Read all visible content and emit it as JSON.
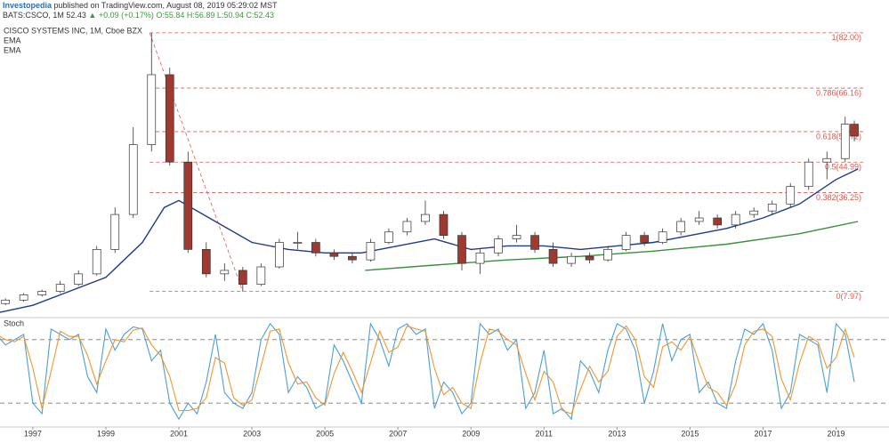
{
  "header": {
    "publisher": "Investopedia",
    "published": "published on TradingView.com, August 08, 2019 05:29:02 MST",
    "symbol": "BATS:CSCO, 1M",
    "last": "52.43",
    "change": "▲ +0.09 (+0.17%)",
    "ohlc": "O:55.84 H:56.89 L:50.94 C:52.43"
  },
  "chart_data": [
    {
      "type": "candlestick",
      "title": "CISCO SYSTEMS INC, 1M, Cboe BZX",
      "up_color": "#ffffff",
      "down_color": "#9e3a2f",
      "wick_color": "#333333",
      "x": [
        1996.25,
        1996.75,
        1997.25,
        1997.75,
        1998.25,
        1998.75,
        1999.25,
        1999.75,
        2000.25,
        2000.75,
        2001.25,
        2001.75,
        2002.25,
        2002.75,
        2003.25,
        2003.75,
        2004.25,
        2004.75,
        2005.25,
        2005.75,
        2006.25,
        2006.75,
        2007.25,
        2007.75,
        2008.25,
        2008.75,
        2009.25,
        2009.75,
        2010.25,
        2010.75,
        2011.25,
        2011.75,
        2012.25,
        2012.75,
        2013.25,
        2013.75,
        2014.25,
        2014.75,
        2015.25,
        2015.75,
        2016.25,
        2016.75,
        2017.25,
        2017.75,
        2018.25,
        2018.75,
        2019.25,
        2019.5
      ],
      "open": [
        4.5,
        5.5,
        7,
        8,
        10,
        13,
        20,
        30,
        50,
        70,
        45,
        20,
        13,
        14,
        10,
        15,
        22,
        22,
        19,
        18,
        17,
        22,
        25,
        28,
        30,
        24,
        16,
        19,
        23,
        24,
        20,
        16,
        18,
        17,
        20,
        24,
        22,
        25,
        28,
        29,
        27,
        30,
        31,
        33,
        38,
        45,
        46,
        55.84
      ],
      "high": [
        6,
        7.5,
        8.5,
        11,
        14,
        21,
        32,
        55,
        82,
        72,
        48,
        22,
        16,
        15,
        16,
        23,
        25,
        23,
        20,
        19,
        23,
        26,
        29,
        34,
        31,
        25,
        20,
        24,
        27,
        25,
        22,
        19,
        19,
        21,
        25,
        25,
        26,
        29,
        31,
        30,
        31,
        32,
        34,
        39,
        46,
        48,
        58,
        56.89
      ],
      "low": [
        4,
        5,
        6.5,
        7.5,
        9.5,
        12.5,
        19,
        29,
        48,
        44,
        19,
        12,
        11,
        7.97,
        9.5,
        14.5,
        20,
        18,
        17,
        16,
        16.5,
        21.5,
        24,
        27,
        23,
        14,
        13,
        18,
        22,
        19,
        15,
        15,
        16,
        16.5,
        19.5,
        21,
        21.5,
        24,
        27,
        26,
        26,
        29,
        30,
        32,
        37,
        40,
        45,
        50.94
      ],
      "close": [
        5.5,
        7,
        8,
        10,
        13,
        20,
        30,
        50,
        70,
        45,
        20,
        13,
        14,
        10,
        15,
        22,
        22,
        19,
        18,
        17,
        22,
        25,
        28,
        30,
        24,
        16,
        19,
        23,
        24,
        20,
        16,
        18,
        17,
        20,
        24,
        22,
        25,
        28,
        29,
        27,
        30,
        31,
        33,
        38,
        45,
        46,
        55.84,
        52.43
      ],
      "series": [
        {
          "name": "EMA",
          "color": "#1f3a8a",
          "x": [
            1996.1,
            1997,
            1998,
            1999,
            2000,
            2000.6,
            2001,
            2002,
            2003,
            2004,
            2005,
            2006,
            2007,
            2008,
            2009,
            2010,
            2011,
            2012,
            2013,
            2014,
            2015,
            2016,
            2017,
            2018,
            2019,
            2019.6
          ],
          "values": [
            2,
            4,
            8,
            12,
            22,
            32,
            34,
            28,
            22,
            20,
            19,
            19,
            21,
            23,
            20,
            21,
            21,
            20,
            21,
            22,
            24,
            26,
            29,
            33,
            40,
            43
          ]
        },
        {
          "name": "EMA",
          "color": "#3a8f3a",
          "x": [
            2006.1,
            2008,
            2010,
            2012,
            2014,
            2016,
            2018,
            2019.6
          ],
          "values": [
            14,
            15.5,
            17,
            18,
            19.5,
            21.5,
            24.5,
            28
          ]
        }
      ],
      "fib": {
        "color": "#e0564a",
        "x": [
          2000.2,
          2002.75
        ],
        "y": [
          82,
          7.97
        ],
        "levels": [
          {
            "value": 82,
            "label": "1(82.00)"
          },
          {
            "value": 66.16,
            "label": "0.786(66.16)"
          },
          {
            "value": 53.72,
            "label": "0.618(53.72)"
          },
          {
            "value": 44.99,
            "label": "0.5(44.99)"
          },
          {
            "value": 36.25,
            "label": "0.382(36.25)"
          },
          {
            "value": 7.97,
            "label": "0(7.97)"
          }
        ]
      },
      "xlim": [
        1996.1,
        2020.45
      ],
      "ylim": [
        1,
        84
      ]
    },
    {
      "type": "line",
      "title": "Stoch",
      "levels": [
        80,
        20
      ],
      "x": [
        1996,
        1996.25,
        1996.5,
        1996.75,
        1997,
        1997.25,
        1997.5,
        1997.75,
        1998,
        1998.25,
        1998.5,
        1998.75,
        1999,
        1999.25,
        1999.5,
        1999.75,
        2000,
        2000.25,
        2000.5,
        2000.75,
        2001,
        2001.25,
        2001.5,
        2001.75,
        2002,
        2002.25,
        2002.5,
        2002.75,
        2003,
        2003.25,
        2003.5,
        2003.75,
        2004,
        2004.25,
        2004.5,
        2004.75,
        2005,
        2005.25,
        2005.5,
        2005.75,
        2006,
        2006.25,
        2006.5,
        2006.75,
        2007,
        2007.25,
        2007.5,
        2007.75,
        2008,
        2008.25,
        2008.5,
        2008.75,
        2009,
        2009.25,
        2009.5,
        2009.75,
        2010,
        2010.25,
        2010.5,
        2010.75,
        2011,
        2011.25,
        2011.5,
        2011.75,
        2012,
        2012.25,
        2012.5,
        2012.75,
        2013,
        2013.25,
        2013.5,
        2013.75,
        2014,
        2014.25,
        2014.5,
        2014.75,
        2015,
        2015.25,
        2015.5,
        2015.75,
        2016,
        2016.25,
        2016.5,
        2016.75,
        2017,
        2017.25,
        2017.5,
        2017.75,
        2018,
        2018.25,
        2018.5,
        2018.75,
        2019,
        2019.25,
        2019.5
      ],
      "series": [
        {
          "color": "#4a9fd8",
          "values": [
            85,
            75,
            80,
            85,
            20,
            10,
            90,
            85,
            80,
            85,
            45,
            30,
            90,
            70,
            85,
            92,
            90,
            60,
            70,
            20,
            5,
            20,
            10,
            40,
            85,
            30,
            20,
            15,
            30,
            80,
            95,
            85,
            30,
            45,
            35,
            15,
            20,
            75,
            60,
            40,
            20,
            95,
            80,
            55,
            90,
            95,
            85,
            90,
            15,
            40,
            30,
            10,
            20,
            95,
            85,
            90,
            70,
            80,
            15,
            30,
            70,
            10,
            15,
            5,
            60,
            50,
            30,
            70,
            95,
            90,
            70,
            20,
            50,
            95,
            60,
            80,
            85,
            30,
            40,
            20,
            15,
            60,
            90,
            85,
            95,
            70,
            15,
            30,
            85,
            80,
            75,
            30,
            95,
            85,
            40
          ]
        },
        {
          "color": "#f0962e",
          "values": [
            85,
            80,
            78,
            83,
            53,
            15,
            50,
            88,
            83,
            83,
            65,
            38,
            60,
            80,
            78,
            89,
            91,
            75,
            65,
            45,
            13,
            13,
            15,
            25,
            63,
            58,
            25,
            18,
            23,
            55,
            88,
            90,
            58,
            38,
            40,
            25,
            18,
            48,
            68,
            50,
            30,
            58,
            88,
            68,
            73,
            93,
            90,
            88,
            53,
            28,
            35,
            20,
            15,
            58,
            90,
            88,
            80,
            75,
            48,
            23,
            50,
            40,
            13,
            10,
            33,
            55,
            40,
            50,
            83,
            93,
            80,
            45,
            35,
            73,
            78,
            70,
            83,
            58,
            35,
            30,
            18,
            38,
            75,
            88,
            90,
            83,
            43,
            23,
            58,
            83,
            78,
            53,
            63,
            90,
            63
          ]
        }
      ],
      "xlim": [
        1996.1,
        2020.45
      ],
      "ylim": [
        0,
        100
      ],
      "xticks": [
        1997,
        1999,
        2001,
        2003,
        2005,
        2007,
        2009,
        2011,
        2013,
        2015,
        2017,
        2019
      ]
    }
  ]
}
